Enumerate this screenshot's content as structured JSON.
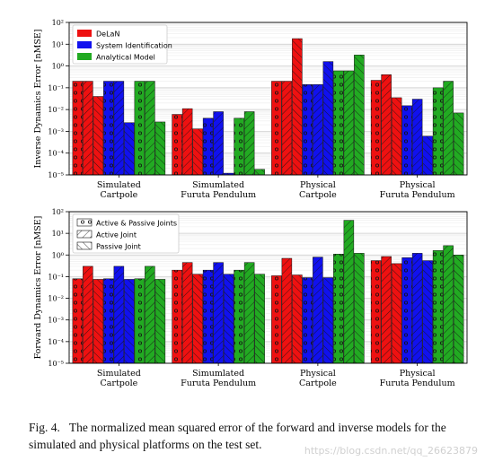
{
  "chart_data": [
    {
      "type": "bar",
      "log_scale": true,
      "ylabel": "Inverse Dynamics Error [nMSE]",
      "ylim": [
        1e-05,
        100
      ],
      "yticks": [
        "10⁻⁵",
        "10⁻⁴",
        "10⁻³",
        "10⁻²",
        "10⁻¹",
        "10⁰",
        "10¹",
        "10²"
      ],
      "grid": true,
      "legend_position": "top-left",
      "categories": [
        "Simulated\nCartpole",
        "Simumlated\nFuruta Pendulum",
        "Physical\nCartpole",
        "Physical\nFuruta Pendulum"
      ],
      "series": [
        {
          "name": "DeLaN",
          "color": "#ee1111",
          "values": [
            [
              0.2,
              0.2,
              0.04
            ],
            [
              0.006,
              0.011,
              0.0013
            ],
            [
              0.2,
              0.2,
              18
            ],
            [
              0.22,
              0.4,
              0.035
            ]
          ]
        },
        {
          "name": "System Identification",
          "color": "#1111ee",
          "values": [
            [
              0.2,
              0.2,
              0.0025
            ],
            [
              0.004,
              0.008,
              1.2e-05
            ],
            [
              0.14,
              0.14,
              1.6
            ],
            [
              0.015,
              0.03,
              0.0006
            ]
          ]
        },
        {
          "name": "Analytical Model",
          "color": "#22aa22",
          "values": [
            [
              0.2,
              0.2,
              0.0027
            ],
            [
              0.004,
              0.008,
              1.8e-05
            ],
            [
              0.6,
              0.6,
              3.2
            ],
            [
              0.1,
              0.2,
              0.007
            ]
          ]
        }
      ]
    },
    {
      "type": "bar",
      "log_scale": true,
      "ylabel": "Forward Dynamics Error [nMSE]",
      "ylim": [
        1e-05,
        100
      ],
      "yticks": [
        "10⁻⁵",
        "10⁻⁴",
        "10⁻³",
        "10⁻²",
        "10⁻¹",
        "10⁰",
        "10¹",
        "10²"
      ],
      "grid": true,
      "legend_position": "top-left",
      "hatch_legend": [
        "Active & Passive Joints",
        "Active Joint",
        "Passive Joint"
      ],
      "categories": [
        "Simulated\nCartpole",
        "Simumlated\nFuruta Pendulum",
        "Physical\nCartpole",
        "Physical\nFuruta Pendulum"
      ],
      "series": [
        {
          "name": "DeLaN",
          "color": "#ee1111",
          "values": [
            [
              0.08,
              0.3,
              0.075
            ],
            [
              0.2,
              0.45,
              0.13
            ],
            [
              0.11,
              0.7,
              0.12
            ],
            [
              0.55,
              0.85,
              0.4
            ]
          ]
        },
        {
          "name": "System Identification",
          "color": "#1111ee",
          "values": [
            [
              0.08,
              0.3,
              0.075
            ],
            [
              0.2,
              0.45,
              0.13
            ],
            [
              0.09,
              0.8,
              0.09
            ],
            [
              0.75,
              1.2,
              0.55
            ]
          ]
        },
        {
          "name": "Analytical Model",
          "color": "#22aa22",
          "values": [
            [
              0.08,
              0.3,
              0.075
            ],
            [
              0.2,
              0.45,
              0.13
            ],
            [
              1.1,
              40,
              1.2
            ],
            [
              1.6,
              2.7,
              1.0
            ]
          ]
        }
      ]
    }
  ],
  "caption": {
    "label": "Fig. 4.",
    "text": "The normalized mean squared error of the forward and inverse models for the simulated and physical platforms on the test set."
  },
  "watermark": "https://blog.csdn.net/qq_26623879"
}
